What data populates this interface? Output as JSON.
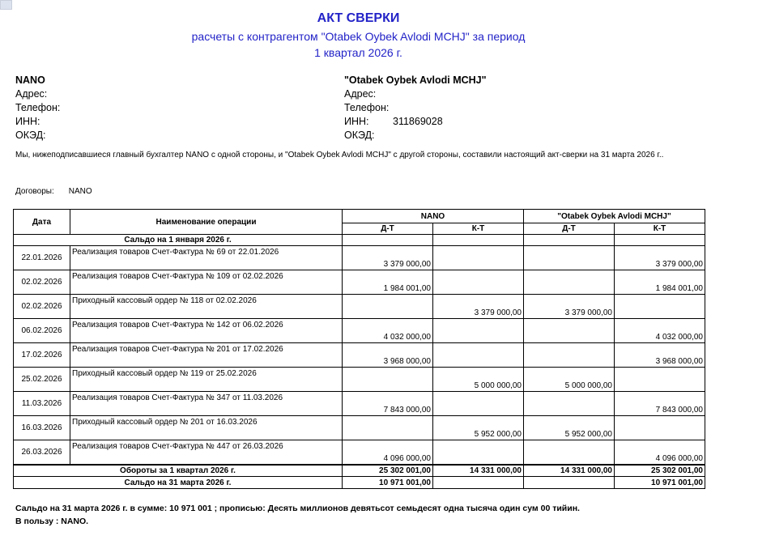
{
  "title": "АКТ СВЕРКИ",
  "subtitle": "расчеты с контрагентом \"Otabek Oybek Avlodi MCHJ\" за период",
  "period": "1 квартал 2026 г.",
  "party_left": {
    "name": "NANO",
    "address_label": "Адрес:",
    "phone_label": "Телефон:",
    "inn_label": "ИНН:",
    "inn": "",
    "oked_label": "ОКЭД:"
  },
  "party_right": {
    "name": "\"Otabek Oybek Avlodi MCHJ\"",
    "address_label": "Адрес:",
    "phone_label": "Телефон:",
    "inn_label": "ИНН:",
    "inn": "311869028",
    "oked_label": "ОКЭД:"
  },
  "intro": "Мы, нижеподписавшиеся главный бухгалтер  NANO с одной стороны, и  \"Otabek Oybek Avlodi MCHJ\"  с другой стороны, составили настоящий акт-сверки на 31 марта 2026 г..",
  "contracts_label": "Договоры:",
  "contracts_value": "NANO",
  "table": {
    "col_date": "Дата",
    "col_op": "Наименование  операции",
    "col_left": "NANO",
    "col_right": "\"Otabek Oybek Avlodi MCHJ\"",
    "dt": "Д-Т",
    "kt": "К-Т",
    "opening": "Сальдо на  1 января 2026 г.",
    "rows": [
      {
        "date": "22.01.2026",
        "op": "Реализация товаров Счет-Фактура № 69 от 22.01.2026",
        "ldt": "3 379 000,00",
        "lkt": "",
        "rdt": "",
        "rkt": "3 379 000,00"
      },
      {
        "date": "02.02.2026",
        "op": "Реализация товаров Счет-Фактура № 109 от 02.02.2026",
        "ldt": "1 984 001,00",
        "lkt": "",
        "rdt": "",
        "rkt": "1 984 001,00"
      },
      {
        "date": "02.02.2026",
        "op": "Приходный кассовый ордер № 118 от 02.02.2026",
        "ldt": "",
        "lkt": "3 379 000,00",
        "rdt": "3 379 000,00",
        "rkt": ""
      },
      {
        "date": "06.02.2026",
        "op": "Реализация товаров Счет-Фактура № 142 от 06.02.2026",
        "ldt": "4 032 000,00",
        "lkt": "",
        "rdt": "",
        "rkt": "4 032 000,00"
      },
      {
        "date": "17.02.2026",
        "op": "Реализация товаров Счет-Фактура № 201 от 17.02.2026",
        "ldt": "3 968 000,00",
        "lkt": "",
        "rdt": "",
        "rkt": "3 968 000,00"
      },
      {
        "date": "25.02.2026",
        "op": "Приходный кассовый ордер № 119 от 25.02.2026",
        "ldt": "",
        "lkt": "5 000 000,00",
        "rdt": "5 000 000,00",
        "rkt": ""
      },
      {
        "date": "11.03.2026",
        "op": "Реализация товаров Счет-Фактура № 347 от 11.03.2026",
        "ldt": "7 843 000,00",
        "lkt": "",
        "rdt": "",
        "rkt": "7 843 000,00"
      },
      {
        "date": "16.03.2026",
        "op": "Приходный кассовый ордер № 201 от 16.03.2026",
        "ldt": "",
        "lkt": "5 952 000,00",
        "rdt": "5 952 000,00",
        "rkt": ""
      },
      {
        "date": "26.03.2026",
        "op": "Реализация товаров Счет-Фактура № 447 от 26.03.2026",
        "ldt": "4 096 000,00",
        "lkt": "",
        "rdt": "",
        "rkt": "4 096 000,00"
      }
    ],
    "turnover": {
      "label": "Обороты за 1 квартал 2026 г.",
      "ldt": "25 302 001,00",
      "lkt": "14 331 000,00",
      "rdt": "14 331 000,00",
      "rkt": "25 302 001,00"
    },
    "closing": {
      "label": "Сальдо на  31 марта 2026 г.",
      "ldt": "10 971 001,00",
      "lkt": "",
      "rdt": "",
      "rkt": "10 971 001,00"
    }
  },
  "footer": {
    "line1": "Сальдо на 31 марта 2026 г.   в сумме: 10 971 001 ; прописью: Десять миллионов девятьсот семьдесят одна тысяча один сум 00 тийин.",
    "line2": "В пользу : NANO."
  }
}
